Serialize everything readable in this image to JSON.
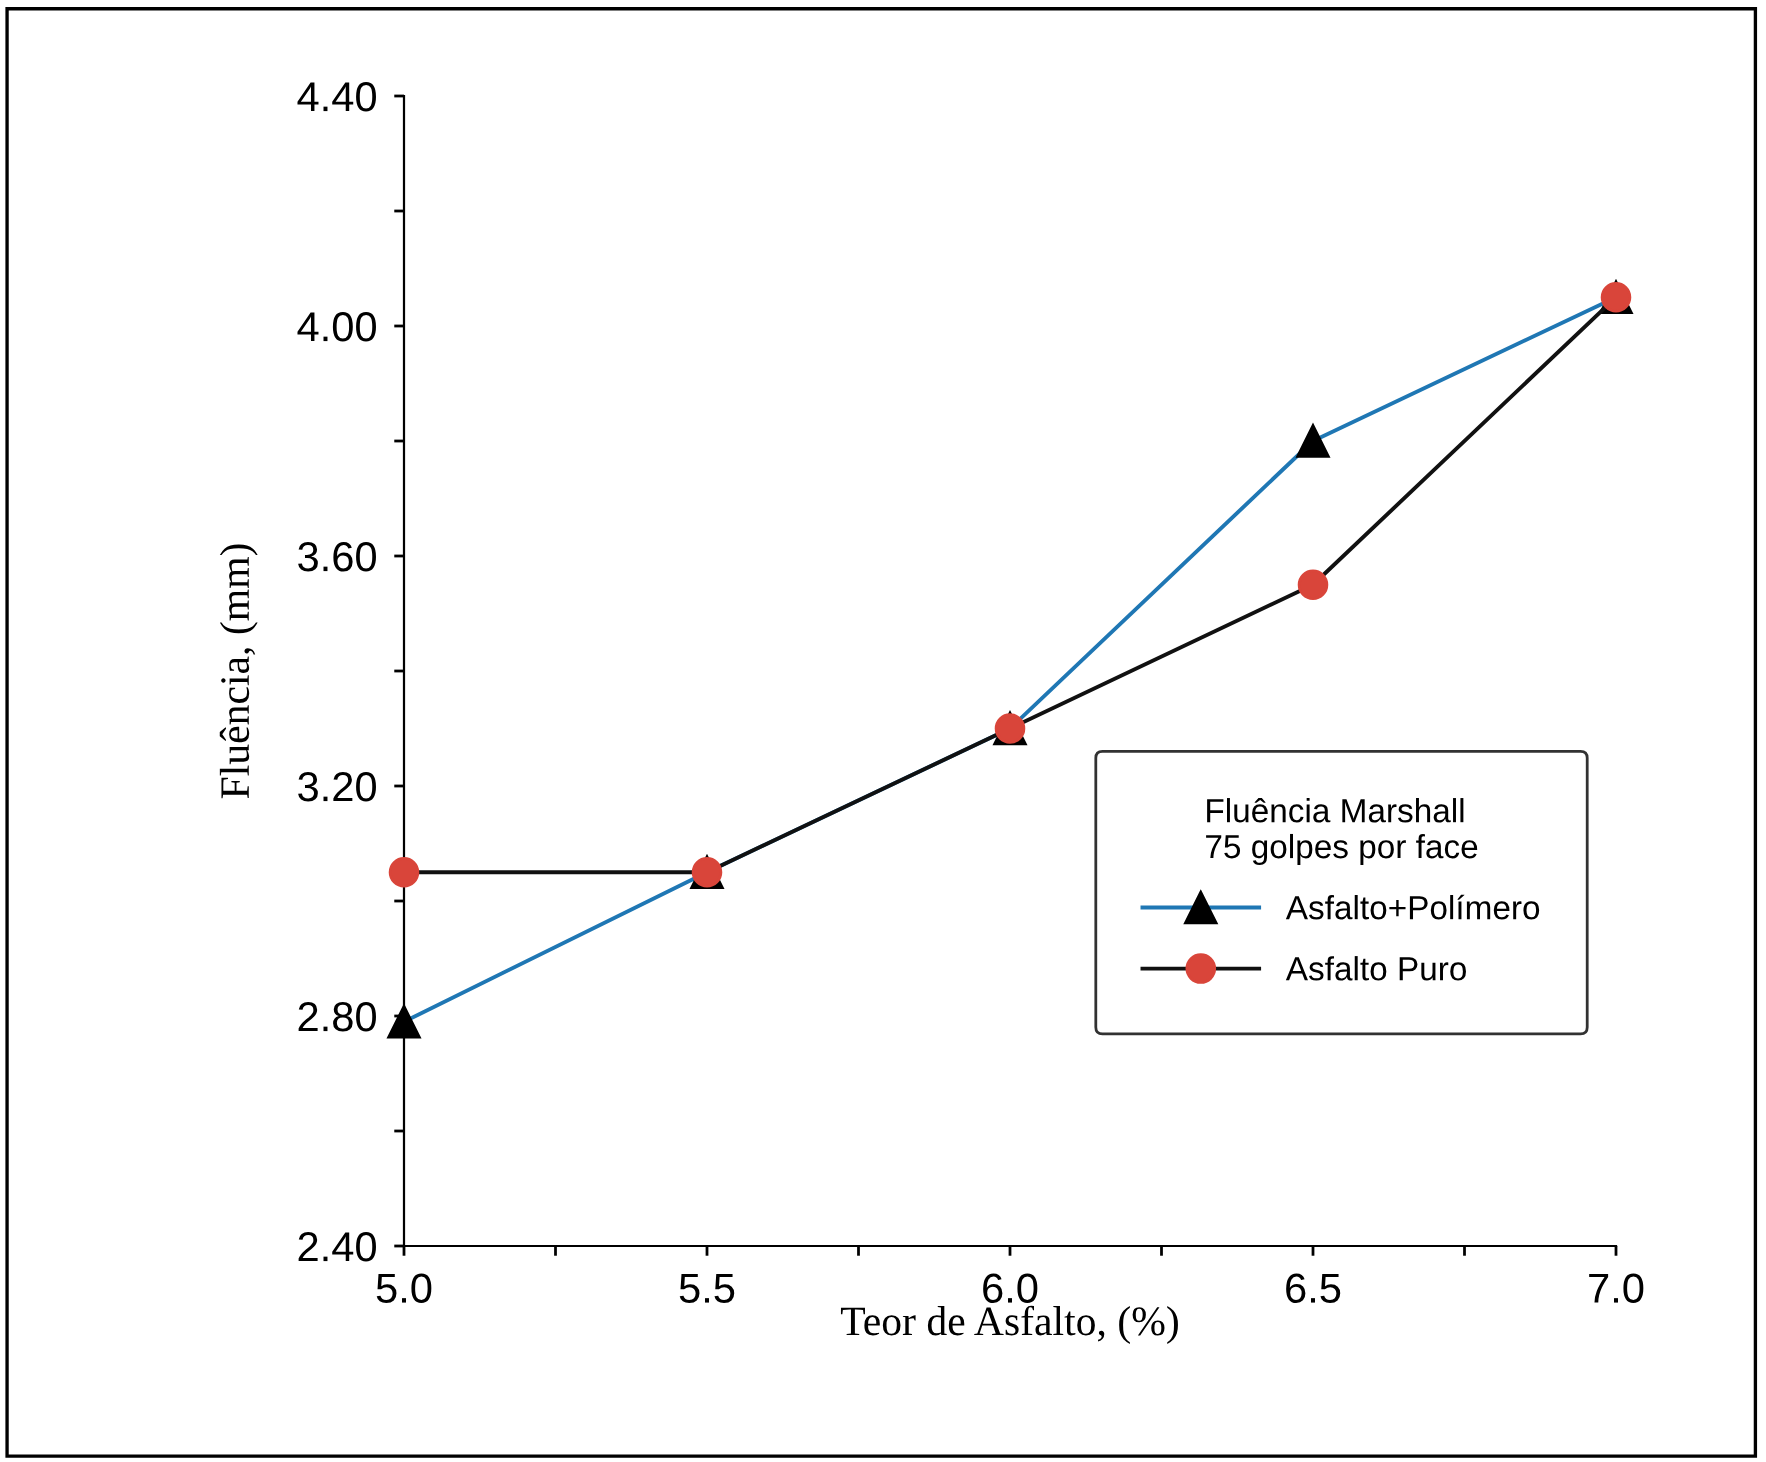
{
  "chart_data": {
    "type": "line",
    "xlabel": "Teor de Asfalto, (%)",
    "ylabel": "Fluência, (mm)",
    "legend_title": "Fluência Marshall\n75 golpes por face",
    "x": [
      5.0,
      5.5,
      6.0,
      6.5,
      7.0
    ],
    "series": [
      {
        "name": "Asfalto+Polímero",
        "color": "#1f77b4",
        "marker": "triangle",
        "values": [
          2.79,
          3.05,
          3.3,
          3.8,
          4.05
        ]
      },
      {
        "name": "Asfalto Puro",
        "color": "#111111",
        "marker": "circle",
        "values": [
          3.05,
          3.05,
          3.3,
          3.55,
          4.05
        ]
      }
    ],
    "xlim": [
      5.0,
      7.0
    ],
    "ylim": [
      2.4,
      4.4
    ],
    "xticks": [
      {
        "value": 5.0,
        "label": "5.0"
      },
      {
        "value": 5.25,
        "label": null
      },
      {
        "value": 5.5,
        "label": "5.5"
      },
      {
        "value": 5.75,
        "label": null
      },
      {
        "value": 6.0,
        "label": "6.0"
      },
      {
        "value": 6.25,
        "label": null
      },
      {
        "value": 6.5,
        "label": "6.5"
      },
      {
        "value": 6.75,
        "label": null
      },
      {
        "value": 7.0,
        "label": "7.0"
      }
    ],
    "yticks": [
      {
        "value": 2.4,
        "label": "2.40"
      },
      {
        "value": 2.6,
        "label": null
      },
      {
        "value": 2.8,
        "label": "2.80"
      },
      {
        "value": 3.0,
        "label": null
      },
      {
        "value": 3.2,
        "label": "3.20"
      },
      {
        "value": 3.4,
        "label": null
      },
      {
        "value": 3.6,
        "label": "3.60"
      },
      {
        "value": 3.8,
        "label": null
      },
      {
        "value": 4.0,
        "label": "4.00"
      },
      {
        "value": 4.2,
        "label": null
      },
      {
        "value": 4.4,
        "label": "4.40"
      }
    ],
    "grid": false,
    "legend": "bottom right"
  }
}
